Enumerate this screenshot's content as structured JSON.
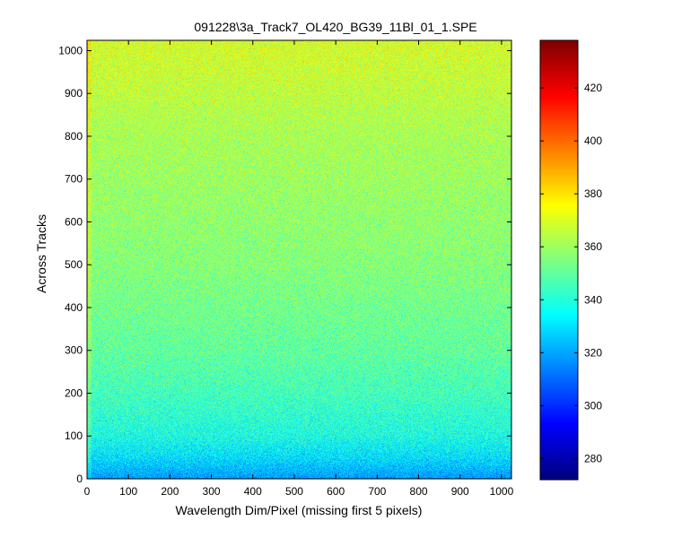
{
  "chart_data": {
    "type": "heatmap",
    "title": "091228\\3a_Track7_OL420_BG39_11Bl_01_1.SPE",
    "xlabel": "Wavelength Dim/Pixel (missing first 5 pixels)",
    "ylabel": "Across Tracks",
    "xlim": [
      0,
      1024
    ],
    "ylim": [
      0,
      1024
    ],
    "x_ticks": [
      0,
      100,
      200,
      300,
      400,
      500,
      600,
      700,
      800,
      900,
      1000
    ],
    "y_ticks": [
      0,
      100,
      200,
      300,
      400,
      500,
      600,
      700,
      800,
      900,
      1000
    ],
    "colormap": "jet",
    "colorbar": {
      "min": 272,
      "max": 438,
      "ticks": [
        280,
        300,
        320,
        340,
        360,
        380,
        400,
        420
      ]
    },
    "grid": false,
    "data_description_rows": [
      {
        "y": 0,
        "approx_mean": 318
      },
      {
        "y": 50,
        "approx_mean": 330
      },
      {
        "y": 100,
        "approx_mean": 338
      },
      {
        "y": 200,
        "approx_mean": 345
      },
      {
        "y": 300,
        "approx_mean": 350
      },
      {
        "y": 400,
        "approx_mean": 353
      },
      {
        "y": 500,
        "approx_mean": 356
      },
      {
        "y": 600,
        "approx_mean": 358
      },
      {
        "y": 700,
        "approx_mean": 360
      },
      {
        "y": 800,
        "approx_mean": 362
      },
      {
        "y": 900,
        "approx_mean": 366
      },
      {
        "y": 1024,
        "approx_mean": 370
      }
    ],
    "noise_std": 10
  }
}
